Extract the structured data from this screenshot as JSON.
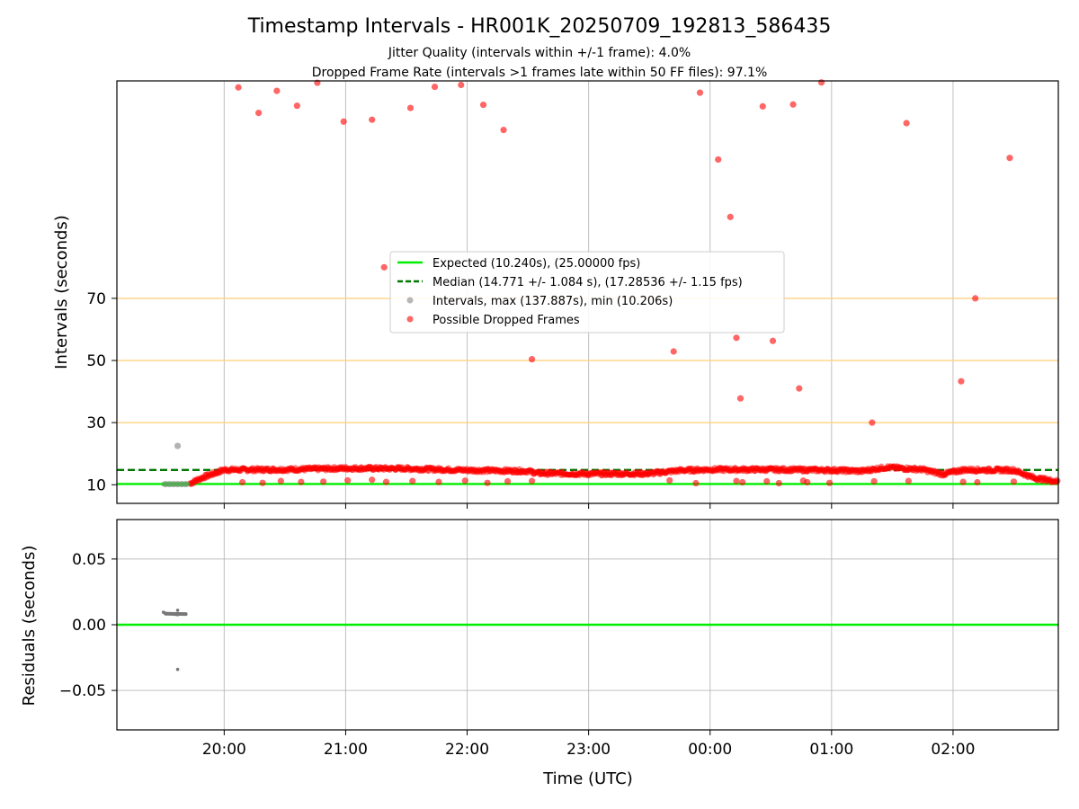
{
  "chart_data": {
    "type": "scatter",
    "title": "Timestamp Intervals - HR001K_20250709_192813_586435",
    "subtitles": [
      "Jitter Quality (intervals within +/-1 frame): 4.0%",
      "Dropped Frame Rate (intervals >1 frames late within 50 FF files): 97.1%"
    ],
    "xlabel": "Time (UTC)",
    "x_ticks": [
      "20:00",
      "21:00",
      "22:00",
      "23:00",
      "00:00",
      "01:00",
      "02:00"
    ],
    "x_range": [
      "19:07",
      "02:52"
    ],
    "grid": "vertical lines on time ticks; horizontal lines on residual ticks",
    "top": {
      "ylabel": "Intervals (seconds)",
      "y_ticks": [
        10,
        30,
        50,
        70
      ],
      "ylim": [
        4,
        140
      ],
      "highlight_lines": [
        30,
        50,
        70
      ],
      "legend_position": "center",
      "legend": [
        "Expected (10.240s), (25.00000 fps)",
        "Median (14.771 +/- 1.084 s), (17.28536 +/- 1.15 fps)",
        "Intervals, max (137.887s), min (10.206s)",
        "Possible Dropped Frames"
      ],
      "expected_value": 10.24,
      "median_value": 14.771,
      "colors": {
        "expected": "#00ee00",
        "median": "#007700",
        "intervals": "#999999",
        "dropped": "#ff0000",
        "highlight": "#ffd27f"
      },
      "dense_band": [
        {
          "t": "19:43",
          "v": 10.4
        },
        {
          "t": "19:50",
          "v": 12.5
        },
        {
          "t": "20:00",
          "v": 14.8
        },
        {
          "t": "20:30",
          "v": 14.9
        },
        {
          "t": "21:00",
          "v": 15.3
        },
        {
          "t": "21:30",
          "v": 15.2
        },
        {
          "t": "22:00",
          "v": 14.7
        },
        {
          "t": "22:30",
          "v": 14.4
        },
        {
          "t": "22:35",
          "v": 13.7
        },
        {
          "t": "23:00",
          "v": 13.5
        },
        {
          "t": "23:30",
          "v": 13.6
        },
        {
          "t": "23:45",
          "v": 14.6
        },
        {
          "t": "00:00",
          "v": 14.9
        },
        {
          "t": "00:30",
          "v": 14.9
        },
        {
          "t": "01:00",
          "v": 14.7
        },
        {
          "t": "01:15",
          "v": 14.4
        },
        {
          "t": "01:27",
          "v": 15.6
        },
        {
          "t": "01:45",
          "v": 14.9
        },
        {
          "t": "01:55",
          "v": 13.4
        },
        {
          "t": "02:05",
          "v": 14.8
        },
        {
          "t": "02:30",
          "v": 14.7
        },
        {
          "t": "02:40",
          "v": 12.2
        },
        {
          "t": "02:52",
          "v": 11.0
        }
      ],
      "interval_points": [
        {
          "t": "19:31",
          "v": 10.2
        },
        {
          "t": "19:33",
          "v": 10.2
        },
        {
          "t": "19:35",
          "v": 10.2
        },
        {
          "t": "19:37",
          "v": 10.2
        },
        {
          "t": "19:39",
          "v": 10.2
        },
        {
          "t": "19:41",
          "v": 10.2
        },
        {
          "t": "19:37",
          "v": 22.5
        }
      ],
      "dropped_points": [
        {
          "t": "20:07",
          "v": 137.9
        },
        {
          "t": "20:17",
          "v": 129.7
        },
        {
          "t": "20:26",
          "v": 136.8
        },
        {
          "t": "20:36",
          "v": 132.0
        },
        {
          "t": "20:46",
          "v": 139.4
        },
        {
          "t": "20:59",
          "v": 126.9
        },
        {
          "t": "21:13",
          "v": 127.5
        },
        {
          "t": "21:32",
          "v": 131.3
        },
        {
          "t": "21:44",
          "v": 138.1
        },
        {
          "t": "21:57",
          "v": 138.7
        },
        {
          "t": "22:08",
          "v": 132.3
        },
        {
          "t": "22:18",
          "v": 124.2
        },
        {
          "t": "21:19",
          "v": 80.0
        },
        {
          "t": "22:32",
          "v": 50.4
        },
        {
          "t": "23:42",
          "v": 52.9
        },
        {
          "t": "23:55",
          "v": 136.2
        },
        {
          "t": "00:04",
          "v": 114.7
        },
        {
          "t": "00:10",
          "v": 96.2
        },
        {
          "t": "00:13",
          "v": 57.3
        },
        {
          "t": "00:15",
          "v": 37.8
        },
        {
          "t": "00:26",
          "v": 131.8
        },
        {
          "t": "00:31",
          "v": 56.3
        },
        {
          "t": "00:41",
          "v": 132.4
        },
        {
          "t": "00:44",
          "v": 41.0
        },
        {
          "t": "00:55",
          "v": 141.4
        },
        {
          "t": "01:20",
          "v": 30.0
        },
        {
          "t": "01:37",
          "v": 126.4
        },
        {
          "t": "02:04",
          "v": 43.3
        },
        {
          "t": "02:11",
          "v": 70.0
        },
        {
          "t": "02:28",
          "v": 115.2
        },
        {
          "t": "20:09",
          "v": 10.8
        },
        {
          "t": "20:19",
          "v": 10.6
        },
        {
          "t": "20:28",
          "v": 11.2
        },
        {
          "t": "20:38",
          "v": 10.9
        },
        {
          "t": "20:49",
          "v": 11.0
        },
        {
          "t": "21:01",
          "v": 11.4
        },
        {
          "t": "21:13",
          "v": 11.6
        },
        {
          "t": "21:20",
          "v": 10.9
        },
        {
          "t": "21:33",
          "v": 11.2
        },
        {
          "t": "21:46",
          "v": 10.9
        },
        {
          "t": "21:59",
          "v": 11.3
        },
        {
          "t": "22:10",
          "v": 10.6
        },
        {
          "t": "22:20",
          "v": 11.1
        },
        {
          "t": "22:32",
          "v": 11.2
        },
        {
          "t": "23:40",
          "v": 11.4
        },
        {
          "t": "23:53",
          "v": 10.5
        },
        {
          "t": "00:13",
          "v": 11.2
        },
        {
          "t": "00:16",
          "v": 10.8
        },
        {
          "t": "00:28",
          "v": 11.1
        },
        {
          "t": "00:34",
          "v": 10.5
        },
        {
          "t": "00:46",
          "v": 11.3
        },
        {
          "t": "00:48",
          "v": 10.8
        },
        {
          "t": "00:59",
          "v": 10.6
        },
        {
          "t": "01:21",
          "v": 11.1
        },
        {
          "t": "01:38",
          "v": 11.2
        },
        {
          "t": "02:05",
          "v": 10.9
        },
        {
          "t": "02:12",
          "v": 10.8
        },
        {
          "t": "02:30",
          "v": 11.0
        }
      ]
    },
    "bottom": {
      "ylabel": "Residuals (seconds)",
      "y_ticks": [
        "0.05",
        "0.00",
        "−0.05"
      ],
      "y_tick_values": [
        0.05,
        0.0,
        -0.05
      ],
      "ylim": [
        -0.08,
        0.08
      ],
      "zero_line_color": "#00ee00",
      "points_color": "#777777",
      "residual_points": [
        {
          "t": "19:30",
          "v": 0.0095
        },
        {
          "t": "19:31",
          "v": 0.0088
        },
        {
          "t": "19:32",
          "v": 0.0085
        },
        {
          "t": "19:33",
          "v": 0.0084
        },
        {
          "t": "19:34",
          "v": 0.0082
        },
        {
          "t": "19:35",
          "v": 0.008
        },
        {
          "t": "19:36",
          "v": 0.0079
        },
        {
          "t": "19:37",
          "v": 0.0076
        },
        {
          "t": "19:37",
          "v": 0.011
        },
        {
          "t": "19:38",
          "v": 0.0082
        },
        {
          "t": "19:39",
          "v": 0.0081
        },
        {
          "t": "19:40",
          "v": 0.008
        },
        {
          "t": "19:41",
          "v": 0.0082
        },
        {
          "t": "19:37",
          "v": -0.034
        }
      ]
    }
  }
}
